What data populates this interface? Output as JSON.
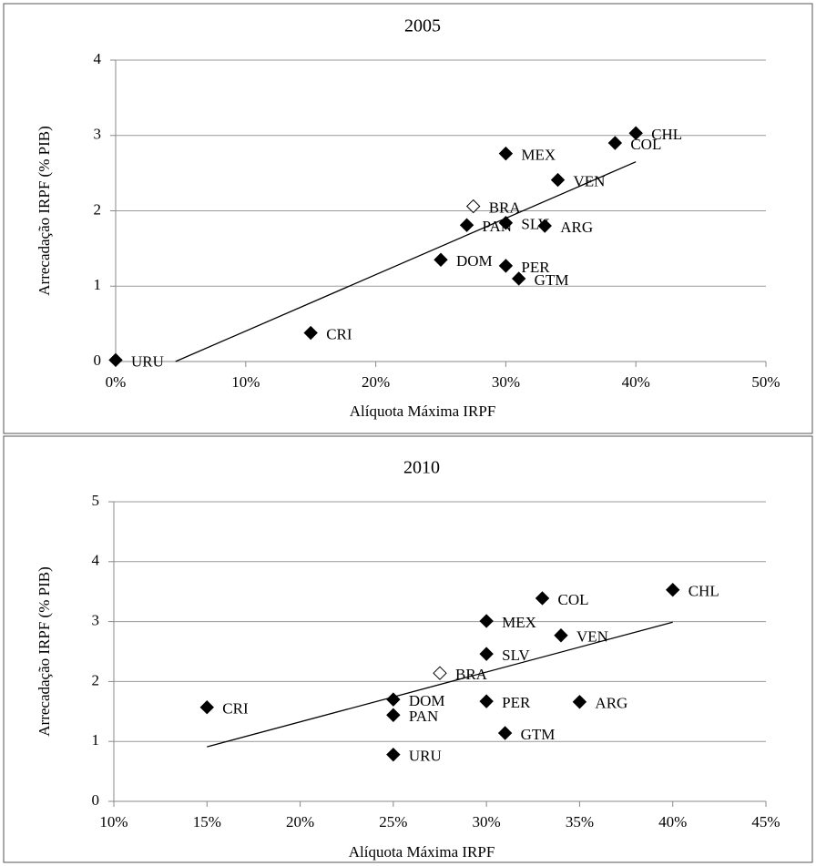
{
  "chart_data": [
    {
      "type": "scatter",
      "title": "2005",
      "x_label": "Alíquota Máxima IRPF",
      "y_label": "Arrecadação IRPF (% PIB)",
      "xlim": [
        0,
        50
      ],
      "ylim": [
        0,
        4
      ],
      "grid": true,
      "xticks": [
        {
          "value": 0,
          "label": "0%"
        },
        {
          "value": 10,
          "label": "10%"
        },
        {
          "value": 20,
          "label": "20%"
        },
        {
          "value": 30,
          "label": "30%"
        },
        {
          "value": 40,
          "label": "40%"
        },
        {
          "value": 50,
          "label": "50%"
        }
      ],
      "yticks": [
        0,
        1,
        2,
        3,
        4
      ],
      "series": [
        {
          "color": "#000000",
          "x": [
            0,
            15,
            25,
            27,
            30,
            30,
            30,
            31,
            33,
            34,
            38.4,
            40
          ],
          "values": [
            0.02,
            0.38,
            1.35,
            1.81,
            1.84,
            2.76,
            1.27,
            1.1,
            1.8,
            2.41,
            2.9,
            3.03
          ],
          "labels": [
            "URU",
            "CRI",
            "DOM",
            "PAN",
            "SLV",
            "MEX",
            "PER",
            "GTM",
            "ARG",
            "VEN",
            "COL",
            "CHL"
          ]
        },
        {
          "color": "#ffffff",
          "x": [
            27.5
          ],
          "values": [
            2.06
          ],
          "labels": [
            "BRA"
          ]
        }
      ],
      "trendline": {
        "x": [
          4.6,
          40
        ],
        "y": [
          0,
          2.65
        ]
      }
    },
    {
      "type": "scatter",
      "title": "2010",
      "x_label": "Alíquota Máxima IRPF",
      "y_label": "Arrecadação IRPF (% PIB)",
      "xlim": [
        10,
        45
      ],
      "ylim": [
        0,
        5
      ],
      "grid": true,
      "xticks": [
        {
          "value": 10,
          "label": "10%"
        },
        {
          "value": 15,
          "label": "15%"
        },
        {
          "value": 20,
          "label": "20%"
        },
        {
          "value": 25,
          "label": "25%"
        },
        {
          "value": 30,
          "label": "30%"
        },
        {
          "value": 35,
          "label": "35%"
        },
        {
          "value": 40,
          "label": "40%"
        },
        {
          "value": 45,
          "label": "45%"
        }
      ],
      "yticks": [
        0,
        1,
        2,
        3,
        4,
        5
      ],
      "series": [
        {
          "color": "#000000",
          "x": [
            15,
            25,
            25,
            25,
            30,
            30,
            30,
            31,
            33,
            34,
            35,
            40
          ],
          "values": [
            1.57,
            1.7,
            1.44,
            0.78,
            2.46,
            3.01,
            1.67,
            1.14,
            3.39,
            2.77,
            1.66,
            3.53
          ],
          "labels": [
            "CRI",
            "DOM",
            "PAN",
            "URU",
            "SLV",
            "MEX",
            "PER",
            "GTM",
            "COL",
            "VEN",
            "ARG",
            "CHL"
          ]
        },
        {
          "color": "#ffffff",
          "x": [
            27.5
          ],
          "values": [
            2.14
          ],
          "labels": [
            "BRA"
          ]
        }
      ],
      "trendline": {
        "x": [
          15,
          40
        ],
        "y": [
          0.91,
          2.99
        ]
      }
    }
  ]
}
